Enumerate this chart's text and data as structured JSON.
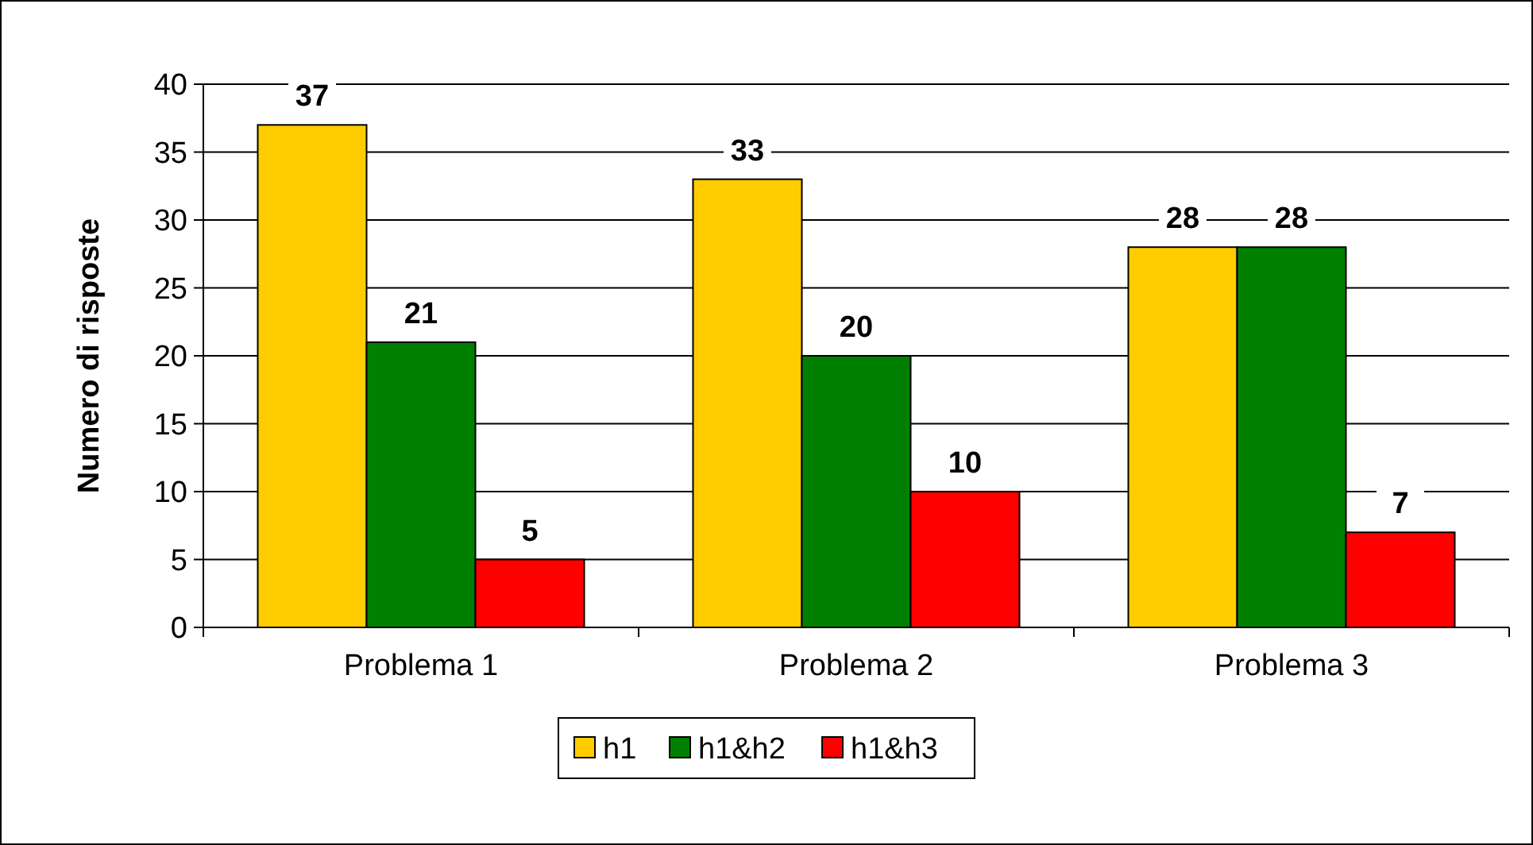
{
  "chart_data": {
    "type": "bar",
    "ylabel": "Numero di risposte",
    "categories": [
      "Problema 1",
      "Problema 2",
      "Problema 3"
    ],
    "series": [
      {
        "name": "h1",
        "color": "#ffcc00",
        "values": [
          37,
          33,
          28
        ]
      },
      {
        "name": "h1&h2",
        "color": "#008000",
        "values": [
          21,
          20,
          28
        ]
      },
      {
        "name": "h1&h3",
        "color": "#ff0000",
        "values": [
          5,
          10,
          7
        ]
      }
    ],
    "ylim": [
      0,
      40
    ],
    "yticks": [
      0,
      5,
      10,
      15,
      20,
      25,
      30,
      35,
      40
    ],
    "grid": "y",
    "legend": "bottom",
    "data_labels": true
  }
}
